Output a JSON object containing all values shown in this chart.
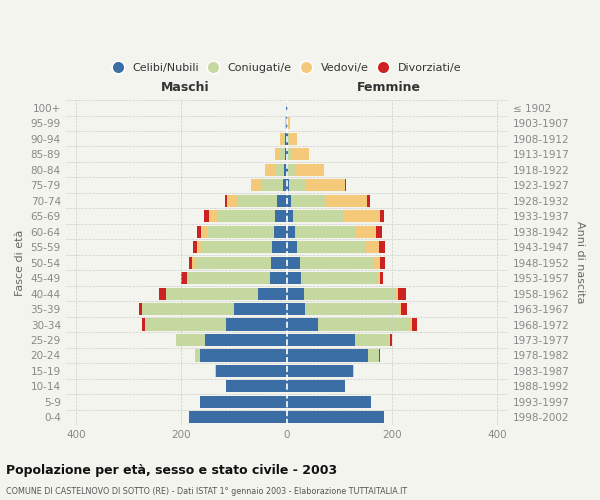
{
  "age_groups": [
    "0-4",
    "5-9",
    "10-14",
    "15-19",
    "20-24",
    "25-29",
    "30-34",
    "35-39",
    "40-44",
    "45-49",
    "50-54",
    "55-59",
    "60-64",
    "65-69",
    "70-74",
    "75-79",
    "80-84",
    "85-89",
    "90-94",
    "95-99",
    "100+"
  ],
  "birth_years": [
    "1998-2002",
    "1993-1997",
    "1988-1992",
    "1983-1987",
    "1978-1982",
    "1973-1977",
    "1968-1972",
    "1963-1967",
    "1958-1962",
    "1953-1957",
    "1948-1952",
    "1943-1947",
    "1938-1942",
    "1933-1937",
    "1928-1932",
    "1923-1927",
    "1918-1922",
    "1913-1917",
    "1908-1912",
    "1903-1907",
    "≤ 1902"
  ],
  "colors": {
    "celibe": "#3a6ea5",
    "coniugato": "#c5d8a0",
    "vedovo": "#f5c97a",
    "divorziato": "#cc2222"
  },
  "males": {
    "celibe": [
      185,
      165,
      115,
      135,
      165,
      155,
      115,
      100,
      55,
      32,
      30,
      28,
      25,
      22,
      18,
      8,
      5,
      4,
      3,
      1,
      1
    ],
    "coniugato": [
      0,
      0,
      0,
      2,
      10,
      55,
      155,
      175,
      175,
      155,
      145,
      135,
      125,
      110,
      75,
      40,
      18,
      8,
      4,
      1,
      0
    ],
    "vedovo": [
      0,
      0,
      0,
      0,
      0,
      0,
      0,
      0,
      0,
      2,
      5,
      8,
      12,
      15,
      20,
      20,
      18,
      10,
      5,
      2,
      1
    ],
    "divorziato": [
      0,
      0,
      0,
      0,
      0,
      0,
      5,
      5,
      12,
      12,
      5,
      8,
      8,
      10,
      5,
      0,
      0,
      0,
      0,
      0,
      0
    ]
  },
  "females": {
    "nubile": [
      185,
      160,
      110,
      125,
      155,
      130,
      60,
      35,
      32,
      28,
      25,
      20,
      15,
      12,
      8,
      5,
      3,
      3,
      2,
      1,
      1
    ],
    "coniugata": [
      0,
      0,
      0,
      3,
      20,
      65,
      175,
      180,
      175,
      145,
      140,
      130,
      115,
      95,
      65,
      30,
      12,
      5,
      2,
      1,
      0
    ],
    "vedova": [
      0,
      0,
      0,
      0,
      0,
      2,
      2,
      2,
      5,
      5,
      12,
      25,
      40,
      70,
      80,
      75,
      55,
      35,
      15,
      5,
      2
    ],
    "divorziata": [
      0,
      0,
      0,
      0,
      2,
      2,
      10,
      12,
      15,
      5,
      10,
      12,
      10,
      8,
      5,
      2,
      0,
      0,
      0,
      0,
      0
    ]
  },
  "title": "Popolazione per età, sesso e stato civile - 2003",
  "subtitle": "COMUNE DI CASTELNOVO DI SOTTO (RE) - Dati ISTAT 1° gennaio 2003 - Elaborazione TUTTAITALIA.IT",
  "maschi_label": "Maschi",
  "femmine_label": "Femmine",
  "ylabel_left": "Fasce di età",
  "ylabel_right": "Anni di nascita",
  "xlim": 420,
  "xticks": [
    -400,
    -200,
    0,
    200,
    400
  ],
  "legend_labels": [
    "Celibi/Nubili",
    "Coniugati/e",
    "Vedovi/e",
    "Divorziati/e"
  ],
  "background_color": "#f4f4ee",
  "grid_color": "#cccccc",
  "tick_color": "#888888"
}
